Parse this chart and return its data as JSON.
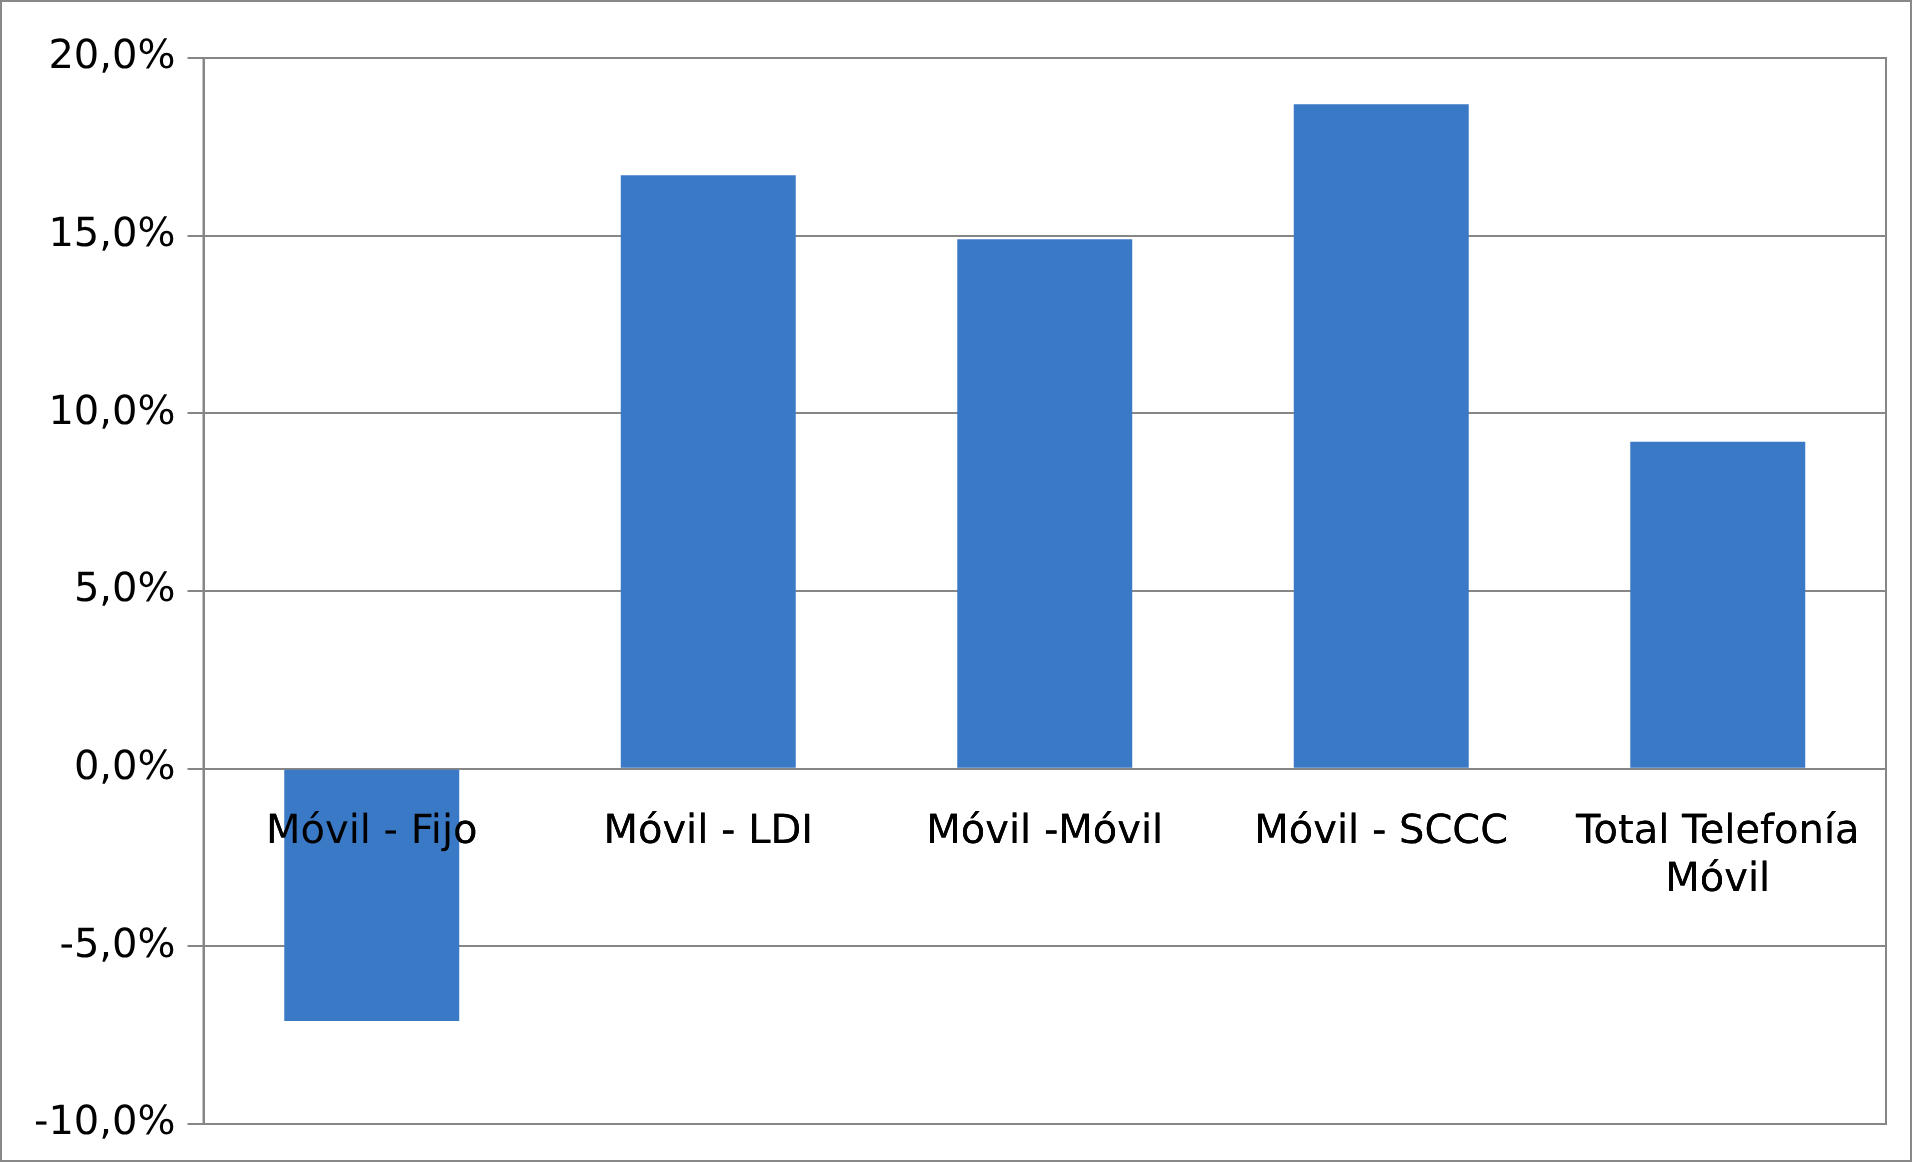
{
  "chart_data": {
    "type": "bar",
    "categories": [
      "Móvil - Fijo",
      "Móvil - LDI",
      "Móvil -Móvil",
      "Móvil - SCCC",
      "Total Telefonía Móvil"
    ],
    "values": [
      -7.1,
      16.7,
      14.9,
      18.7,
      9.2
    ],
    "color": "#3a79c6",
    "ylim": [
      -10,
      20
    ],
    "yticks": [
      {
        "value": -10,
        "label": "-10,0%"
      },
      {
        "value": -5,
        "label": "-5,0%"
      },
      {
        "value": 0,
        "label": "0,0%"
      },
      {
        "value": 5,
        "label": "5,0%"
      },
      {
        "value": 10,
        "label": "10,0%"
      },
      {
        "value": 15,
        "label": "15,0%"
      },
      {
        "value": 20,
        "label": "20,0%"
      }
    ],
    "grid": "y",
    "legend": false
  }
}
